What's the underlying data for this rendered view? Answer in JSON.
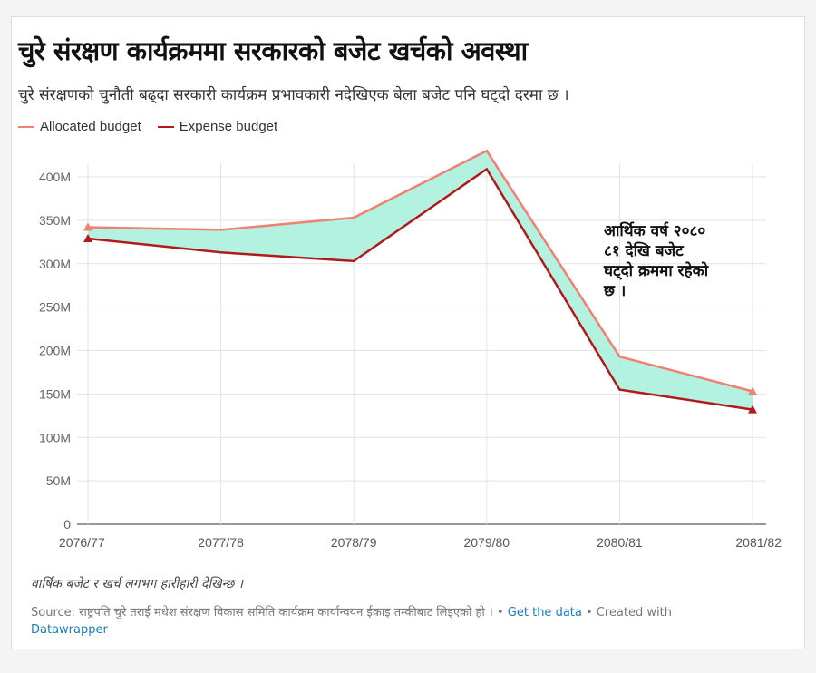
{
  "title": "चुरे संरक्षण कार्यक्रममा सरकारको बजेट खर्चको अवस्था",
  "subtitle": "चुरे संरक्षणको चुनौती बढ्दा सरकारी कार्यक्रम प्रभावकारी नदेखिएक बेला बजेट पनि घट्दो दरमा छ ।",
  "legend": [
    {
      "label": "Allocated budget",
      "color": "#f08070"
    },
    {
      "label": "Expense budget",
      "color": "#b21a1a"
    }
  ],
  "annotation": [
    "आर्थिक वर्ष २०८०",
    "८१ देखि बजेट",
    "घट्दो क्रममा रहेको",
    "छ ।"
  ],
  "notes": "वार्षिक बजेट र खर्च लगभग हारीहारी देखिन्छ ।",
  "source": {
    "text": "Source: राष्ट्रपति चुरे तराई मधेश संरक्षण विकास समिति कार्यक्रम कार्यान्वयन ईकाइ तम्कीबाट लिइएको हो ।",
    "sep1": "•",
    "get_data": "Get the data",
    "created": "• Created with",
    "datawrapper": "Datawrapper"
  },
  "chart_data": {
    "type": "line",
    "title": "चुरे संरक्षण कार्यक्रममा सरकारको बजेट खर्चको अवस्था",
    "categories": [
      "2076/77",
      "2077/78",
      "2078/79",
      "2079/80",
      "2080/81",
      "2081/82"
    ],
    "series": [
      {
        "name": "Allocated budget",
        "values": [
          342,
          339,
          353,
          430,
          193,
          153
        ],
        "color": "#f08070"
      },
      {
        "name": "Expense budget",
        "values": [
          329,
          313,
          303,
          409,
          155,
          132
        ],
        "color": "#b21a1a"
      }
    ],
    "fill_between_color": "#a6f0dc",
    "ylim": [
      0,
      430
    ],
    "yticks": [
      0,
      50,
      100,
      150,
      200,
      250,
      300,
      350,
      400
    ],
    "ytick_labels": [
      "0",
      "50M",
      "100M",
      "150M",
      "200M",
      "250M",
      "300M",
      "350M",
      "400M"
    ],
    "unit": "M",
    "grid": true,
    "legend_position": "top-left"
  }
}
